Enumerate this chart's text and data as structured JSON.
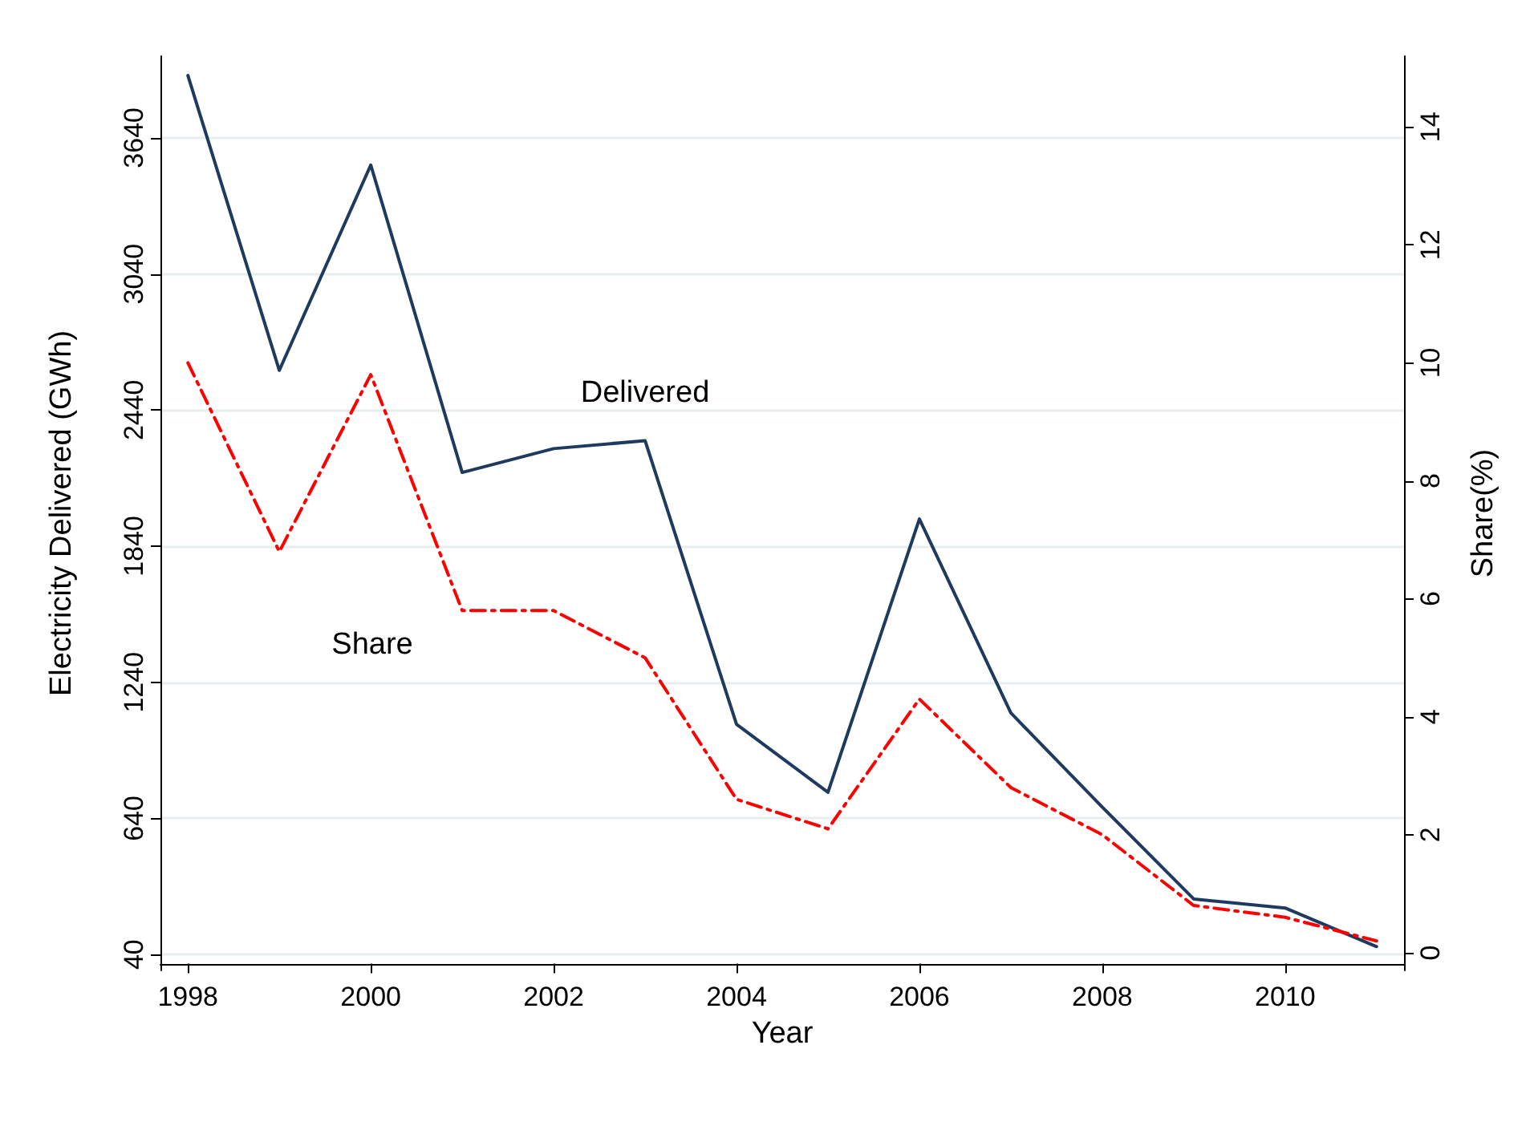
{
  "chart_data": {
    "type": "line",
    "xlabel": "Year",
    "ylabel": "Electricity Delivered (GWh)",
    "y2label": "Share(%)",
    "x": [
      1998,
      1999,
      2000,
      2001,
      2002,
      2003,
      2004,
      2005,
      2006,
      2007,
      2008,
      2009,
      2010,
      2011
    ],
    "series": [
      {
        "color": "#1f3a5f",
        "line_style": "solid",
        "values": [
          3915,
          2615,
          3520,
          2165,
          2270,
          2305,
          1055,
          755,
          1960,
          1105,
          690,
          285,
          245,
          75
        ]
      },
      {
        "color": "#ff0000",
        "line_style": "dashed",
        "axis": "y2",
        "values": [
          10.0,
          6.8,
          9.8,
          5.8,
          5.8,
          5.0,
          2.6,
          2.1,
          4.3,
          2.8,
          2.0,
          0.8,
          0.6,
          0.2
        ]
      }
    ],
    "annotations": [
      "Delivered",
      "Share"
    ],
    "xlim": [
      1997.7,
      2011.3
    ],
    "xticks": [
      1998,
      2000,
      2002,
      2004,
      2006,
      2008,
      2010
    ],
    "ylim": [
      -30,
      4000
    ],
    "yticks": [
      40,
      640,
      1240,
      1840,
      2440,
      3040,
      3640
    ],
    "y2lim": [
      -0.3,
      15.2
    ],
    "y2ticks": [
      0,
      2,
      4,
      6,
      8,
      10,
      12,
      14
    ],
    "grid": "y",
    "marker": "none"
  }
}
